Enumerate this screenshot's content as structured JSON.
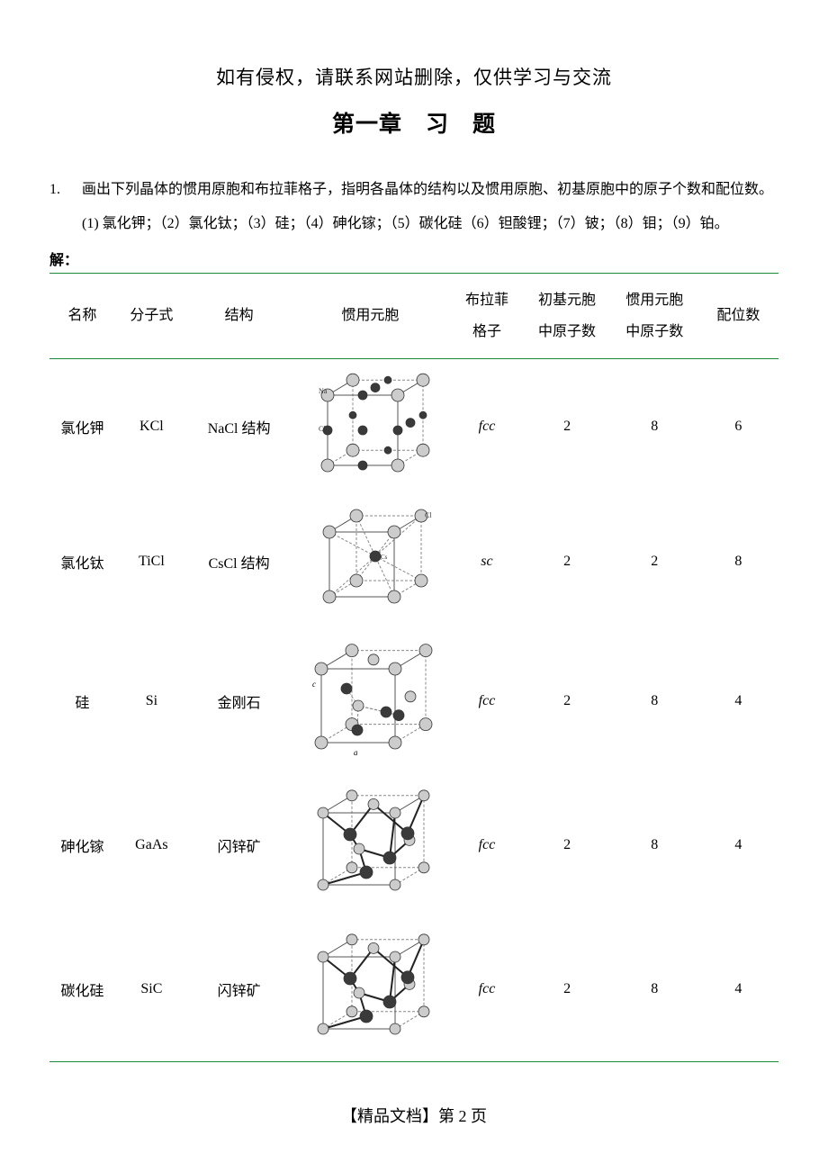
{
  "disclaimer": "如有侵权，请联系网站删除，仅供学习与交流",
  "chapter_title_a": "第一章",
  "chapter_title_b": "习",
  "chapter_title_c": "题",
  "question": {
    "number": "1.",
    "line1": "画出下列晶体的惯用原胞和布拉菲格子，指明各晶体的结构以及惯用原胞、初基原胞中的原子个数和配位数。",
    "line2": "(1) 氯化钾；（2）氯化钛；（3）硅；（4）砷化镓；（5）碳化硅（6）钽酸锂；（7）铍；（8）钼；（9）铂。"
  },
  "answer_label": "解：",
  "headers": {
    "name": "名称",
    "formula": "分子式",
    "structure": "结构",
    "conventional_cell": "惯用元胞",
    "bravais_l1": "布拉菲",
    "bravais_l2": "格子",
    "primitive_l1": "初基元胞",
    "primitive_l2": "中原子数",
    "conv_l1": "惯用元胞",
    "conv_l2": "中原子数",
    "coordination": "配位数"
  },
  "rows": [
    {
      "name": "氯化钾",
      "formula": "KCl",
      "structure": "NaCl 结构",
      "bravais": "fcc",
      "primitive_atoms": "2",
      "conv_atoms": "8",
      "coord": "6",
      "svg": "nacl"
    },
    {
      "name": "氯化钛",
      "formula": "TiCl",
      "structure": "CsCl 结构",
      "bravais": "sc",
      "primitive_atoms": "2",
      "conv_atoms": "2",
      "coord": "8",
      "svg": "cscl"
    },
    {
      "name": "硅",
      "formula": "Si",
      "structure": "金刚石",
      "bravais": "fcc",
      "primitive_atoms": "2",
      "conv_atoms": "8",
      "coord": "4",
      "svg": "diamond"
    },
    {
      "name": "砷化镓",
      "formula": "GaAs",
      "structure": "闪锌矿",
      "bravais": "fcc",
      "primitive_atoms": "2",
      "conv_atoms": "8",
      "coord": "4",
      "svg": "zincblende"
    },
    {
      "name": "碳化硅",
      "formula": "SiC",
      "structure": "闪锌矿",
      "bravais": "fcc",
      "primitive_atoms": "2",
      "conv_atoms": "8",
      "coord": "4",
      "svg": "zincblende"
    }
  ],
  "footer": "【精品文档】第 2 页",
  "style": {
    "rule_color": "#1a8a3a",
    "atom_light": "#cccccc",
    "atom_dark": "#3a3a3a",
    "stroke": "#555555",
    "dash_stroke": "#888888"
  }
}
